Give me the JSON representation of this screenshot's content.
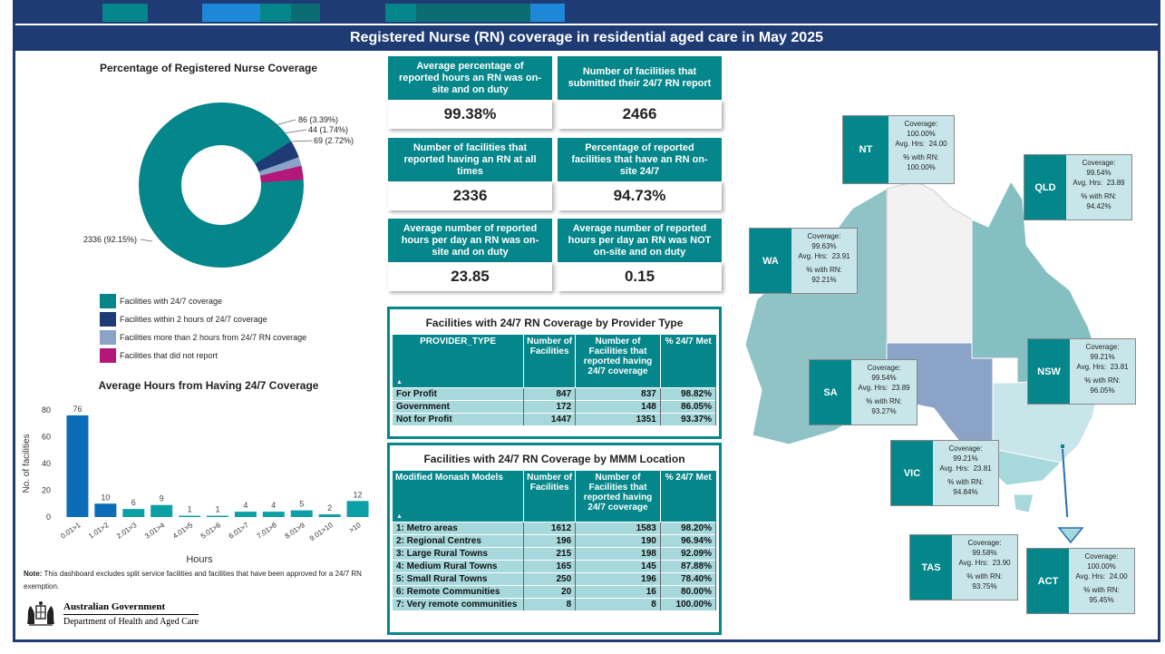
{
  "header": {
    "title": "Registered Nurse (RN) coverage in residential aged care in May 2025"
  },
  "colors": {
    "navy": "#1f3b73",
    "teal": "#05868a",
    "blue": "#0d5aa7",
    "grey_blue": "#8ba3c6",
    "magenta": "#b5167a",
    "light_teal": "#a6d8dc"
  },
  "donut": {
    "title": "Percentage of Registered Nurse Coverage",
    "labels": [
      "86 (3.39%)",
      "44 (1.74%)",
      "69 (2.72%)",
      "2336 (92.15%)"
    ],
    "legend": [
      "Facilities with 24/7 coverage",
      "Facilities within 2 hours of 24/7 coverage",
      "Facilities more than 2 hours from 24/7 RN coverage",
      "Facilities that did not report"
    ],
    "values": [
      2336,
      86,
      44,
      69
    ]
  },
  "bar": {
    "title": "Average Hours from Having 24/7 Coverage"
  },
  "chart_data": {
    "type": "bar",
    "title": "Average Hours from Having 24/7 Coverage",
    "xlabel": "Hours",
    "ylabel": "No. of facilities",
    "categories": [
      "0.01>1",
      "1.01>2",
      "2.01>3",
      "3.01>4",
      "4.01>5",
      "5.01>6",
      "6.01>7",
      "7.01>8",
      "8.01>9",
      "9.01>10",
      ">10"
    ],
    "values": [
      76,
      10,
      6,
      9,
      1,
      1,
      4,
      4,
      5,
      2,
      12
    ],
    "ylim": [
      0,
      80
    ],
    "yticks": [
      0,
      20,
      40,
      60,
      80
    ],
    "grid": false
  },
  "note": {
    "label": "Note:",
    "text": "This dashboard excludes split service facilities and facilities that have been approved for a 24/7 RN exemption."
  },
  "govt": {
    "line1": "Australian Government",
    "line2": "Department of Health and Aged Care"
  },
  "kpis": [
    {
      "label": "Average percentage of reported hours an RN was on-site and on duty",
      "value": "99.38%"
    },
    {
      "label": "Number of facilities that submitted their 24/7 RN report",
      "value": "2466"
    },
    {
      "label": "Number of facilities that reported having an RN at all times",
      "value": "2336"
    },
    {
      "label": "Percentage of reported facilities that have an RN on-site 24/7",
      "value": "94.73%"
    },
    {
      "label": "Average number of reported hours per day an RN was on-site and on duty",
      "value": "23.85"
    },
    {
      "label": "Average number of reported hours per day an RN was NOT on-site and on duty",
      "value": "0.15"
    }
  ],
  "provider_table": {
    "title": "Facilities with 24/7 RN Coverage by Provider Type",
    "headers": [
      "PROVIDER_TYPE",
      "Number of Facilities",
      "Number of Facilities that reported having 24/7 coverage",
      "% 24/7 Met"
    ],
    "rows": [
      [
        "For Profit",
        "847",
        "837",
        "98.82%"
      ],
      [
        "Government",
        "172",
        "148",
        "86.05%"
      ],
      [
        "Not for Profit",
        "1447",
        "1351",
        "93.37%"
      ]
    ]
  },
  "mmm_table": {
    "title": "Facilities with 24/7 RN Coverage by MMM Location",
    "headers": [
      "Modified Monash Models",
      "Number of Facilities",
      "Number of Facilities that reported having 24/7 coverage",
      "% 24/7 Met"
    ],
    "rows": [
      [
        "1: Metro areas",
        "1612",
        "1583",
        "98.20%"
      ],
      [
        "2: Regional Centres",
        "196",
        "190",
        "96.94%"
      ],
      [
        "3: Large Rural Towns",
        "215",
        "198",
        "92.09%"
      ],
      [
        "4: Medium Rural Towns",
        "165",
        "145",
        "87.88%"
      ],
      [
        "5: Small Rural Towns",
        "250",
        "196",
        "78.40%"
      ],
      [
        "6: Remote Communities",
        "20",
        "16",
        "80.00%"
      ],
      [
        "7: Very remote communities",
        "8",
        "8",
        "100.00%"
      ]
    ]
  },
  "states": [
    {
      "code": "NT",
      "coverage": "100.00%",
      "hrs": "24.00",
      "pct_rn": "100.00%"
    },
    {
      "code": "QLD",
      "coverage": "99.54%",
      "hrs": "23.89",
      "pct_rn": "94.42%"
    },
    {
      "code": "WA",
      "coverage": "99.63%",
      "hrs": "23.91",
      "pct_rn": "92.21%"
    },
    {
      "code": "NSW",
      "coverage": "99.21%",
      "hrs": "23.81",
      "pct_rn": "96.05%"
    },
    {
      "code": "SA",
      "coverage": "99.54%",
      "hrs": "23.89",
      "pct_rn": "93.27%"
    },
    {
      "code": "VIC",
      "coverage": "99.21%",
      "hrs": "23.81",
      "pct_rn": "94.84%"
    },
    {
      "code": "TAS",
      "coverage": "99.58%",
      "hrs": "23.90",
      "pct_rn": "93.75%"
    },
    {
      "code": "ACT",
      "coverage": "100.00%",
      "hrs": "24.00",
      "pct_rn": "95.45%"
    }
  ],
  "state_labels": {
    "coverage": "Coverage:",
    "hrs": "Avg. Hrs:",
    "pct_rn": "% with RN:"
  }
}
